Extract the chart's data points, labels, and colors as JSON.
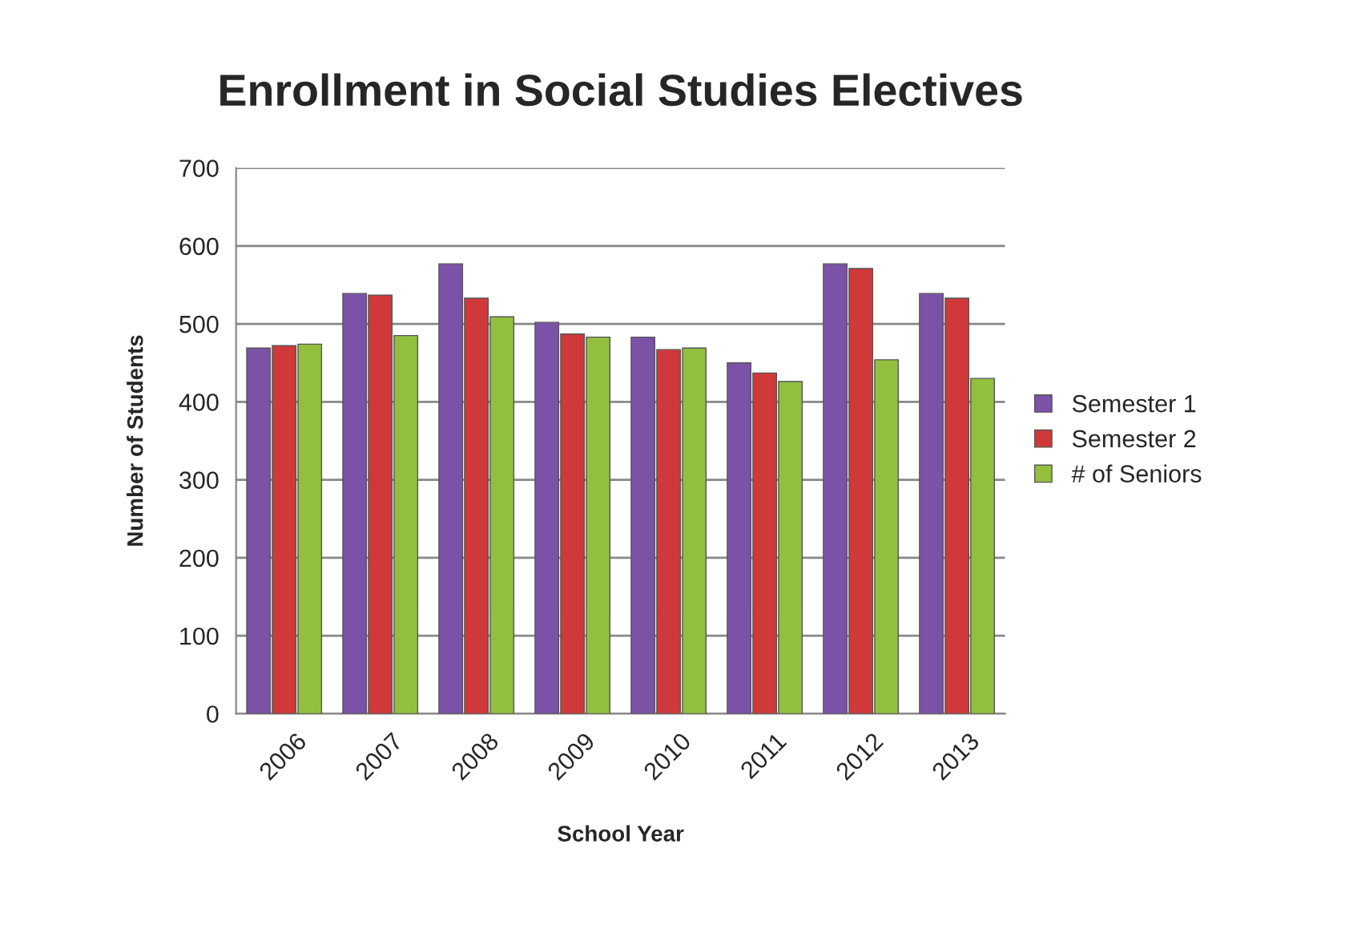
{
  "chart_data": {
    "type": "bar",
    "title": "Enrollment in Social Studies Electives",
    "xlabel": "School Year",
    "ylabel": "Number of Students",
    "categories": [
      "2006",
      "2007",
      "2008",
      "2009",
      "2010",
      "2011",
      "2012",
      "2013"
    ],
    "series": [
      {
        "name": "Semester 1",
        "color": "#7b52a8",
        "values": [
          469,
          539,
          577,
          502,
          483,
          450,
          577,
          539
        ]
      },
      {
        "name": "Semester 2",
        "color": "#d0393a",
        "values": [
          472,
          537,
          533,
          487,
          467,
          437,
          571,
          533
        ]
      },
      {
        "name": "# of Seniors",
        "color": "#93bf3f",
        "values": [
          474,
          485,
          509,
          483,
          469,
          426,
          454,
          430
        ]
      }
    ],
    "ylim": [
      0,
      700
    ],
    "yticks": [
      0,
      100,
      200,
      300,
      400,
      500,
      600,
      700
    ],
    "grid": "y",
    "legend": "right"
  }
}
